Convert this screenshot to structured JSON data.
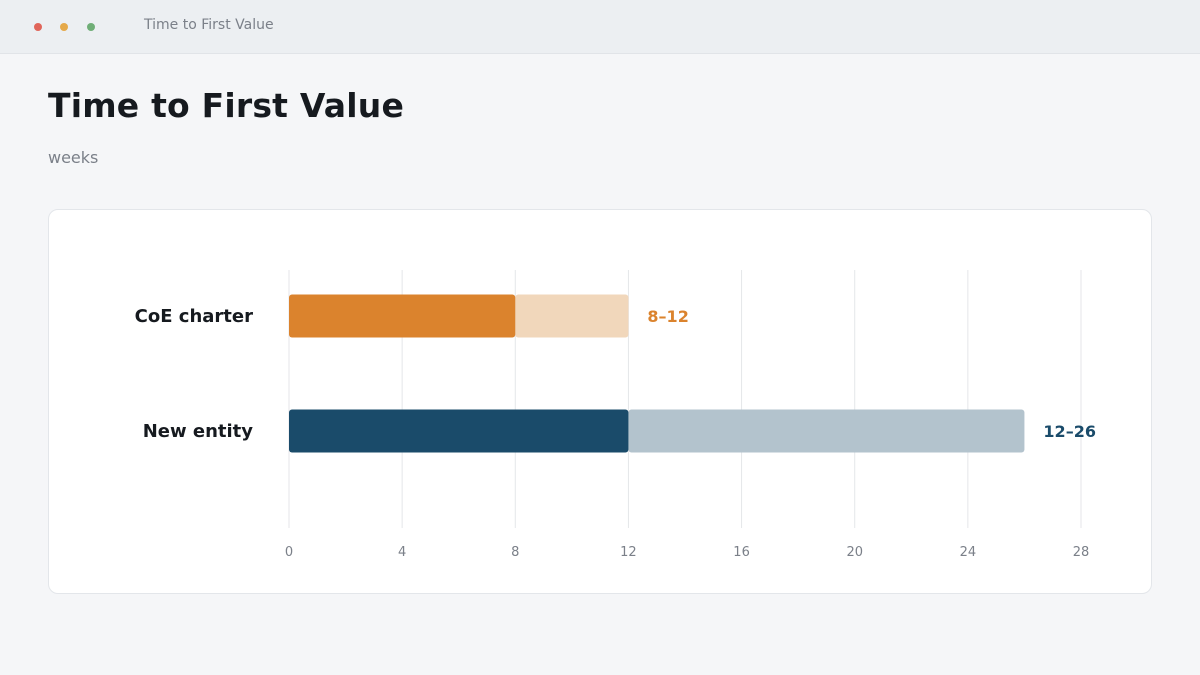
{
  "window": {
    "title": "Time to First Value",
    "traffic_lights": [
      "#e0655a",
      "#e5a94a",
      "#6fae77"
    ]
  },
  "page": {
    "title": "Time to First Value",
    "subtitle": "weeks"
  },
  "chart_data": {
    "type": "bar",
    "orientation": "horizontal",
    "subtype": "range",
    "unit": "weeks",
    "xlim": [
      0,
      28
    ],
    "xticks": [
      0,
      4,
      8,
      12,
      16,
      20,
      24,
      28
    ],
    "grid": true,
    "categories": [
      "CoE charter",
      "New entity"
    ],
    "series": [
      {
        "low": 8,
        "high": 12,
        "label": "8–12",
        "color": "#db832d",
        "range_color": "#f1d7bb"
      },
      {
        "low": 12,
        "high": 26,
        "label": "12–26",
        "color": "#1a4b6a",
        "range_color": "#b3c3cd"
      }
    ]
  }
}
